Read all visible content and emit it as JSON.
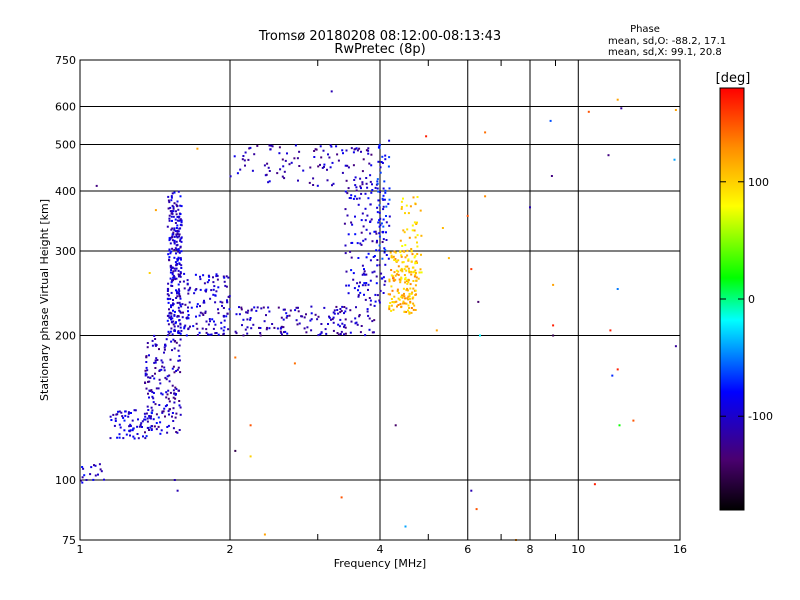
{
  "chart_data": {
    "type": "scatter",
    "title": "Tromsø 20180208 08:12:00-08:13:43",
    "subtitle": "RwPretec (8p)",
    "xlabel": "Frequency [MHz]",
    "ylabel": "Stationary phase Virtual Height [km]",
    "x_scale": "log",
    "y_scale": "log",
    "xlim": [
      1,
      16
    ],
    "ylim": [
      75,
      750
    ],
    "x_ticks": [
      1,
      2,
      4,
      6,
      8,
      10,
      16
    ],
    "x_tick_labels": [
      "1",
      "2",
      "4",
      "6",
      "8",
      "10",
      "16"
    ],
    "x_minor_grid": [
      3,
      5,
      7,
      9
    ],
    "y_ticks": [
      75,
      100,
      200,
      300,
      400,
      500,
      600,
      750
    ],
    "y_tick_labels": [
      "75",
      "100",
      "200",
      "300",
      "400",
      "500",
      "600",
      "750"
    ],
    "grid": true,
    "phase_info": {
      "heading": "Phase",
      "o_mode": "mean, sd,O: -88.2, 17.1",
      "x_mode": "mean, sd,X:  99.1, 20.8"
    },
    "colorbar": {
      "label": "[deg]",
      "range": [
        -180,
        180
      ],
      "ticks": [
        100,
        0,
        -100
      ],
      "tick_labels": [
        "100",
        "0",
        "-100"
      ]
    },
    "point_clusters": [
      {
        "x": [
          1.5,
          1.6
        ],
        "y": [
          200,
          400
        ],
        "phase": -100,
        "count": 260
      },
      {
        "x": [
          1.35,
          1.6
        ],
        "y": [
          125,
          200
        ],
        "phase": -110,
        "count": 160
      },
      {
        "x": [
          1.15,
          1.45
        ],
        "y": [
          122,
          140
        ],
        "phase": -95,
        "count": 80
      },
      {
        "x": [
          1.6,
          2.0
        ],
        "y": [
          200,
          270
        ],
        "phase": -100,
        "count": 130
      },
      {
        "x": [
          1.0,
          1.12
        ],
        "y": [
          98,
          108
        ],
        "phase": -100,
        "count": 18
      },
      {
        "x": [
          2.05,
          3.9
        ],
        "y": [
          200,
          230
        ],
        "phase": -110,
        "count": 150
      },
      {
        "x": [
          2.0,
          3.9
        ],
        "y": [
          410,
          500
        ],
        "phase": -110,
        "count": 110
      },
      {
        "x": [
          3.4,
          4.1
        ],
        "y": [
          230,
          420
        ],
        "phase": -100,
        "count": 140
      },
      {
        "x": [
          3.95,
          4.2
        ],
        "y": [
          280,
          510
        ],
        "phase": -80,
        "count": 60
      },
      {
        "x": [
          4.15,
          4.75
        ],
        "y": [
          222,
          300
        ],
        "phase": 110,
        "count": 150
      },
      {
        "x": [
          4.4,
          4.85
        ],
        "y": [
          260,
          390
        ],
        "phase": 100,
        "count": 60
      }
    ],
    "sparse_points": [
      {
        "x": 1.08,
        "y": 410,
        "phase": -130
      },
      {
        "x": 1.72,
        "y": 490,
        "phase": 120
      },
      {
        "x": 3.2,
        "y": 645,
        "phase": -110
      },
      {
        "x": 4.95,
        "y": 520,
        "phase": 170
      },
      {
        "x": 6.5,
        "y": 530,
        "phase": 140
      },
      {
        "x": 6.3,
        "y": 235,
        "phase": -140
      },
      {
        "x": 6.1,
        "y": 275,
        "phase": 160
      },
      {
        "x": 6.35,
        "y": 200,
        "phase": -20
      },
      {
        "x": 6.1,
        "y": 95,
        "phase": -110
      },
      {
        "x": 6.25,
        "y": 87,
        "phase": 150
      },
      {
        "x": 6.5,
        "y": 390,
        "phase": 130
      },
      {
        "x": 8.0,
        "y": 370,
        "phase": -110
      },
      {
        "x": 8.8,
        "y": 560,
        "phase": -60
      },
      {
        "x": 8.85,
        "y": 430,
        "phase": -130
      },
      {
        "x": 8.9,
        "y": 255,
        "phase": 120
      },
      {
        "x": 8.9,
        "y": 210,
        "phase": 170
      },
      {
        "x": 8.9,
        "y": 200,
        "phase": -150
      },
      {
        "x": 10.5,
        "y": 585,
        "phase": 150
      },
      {
        "x": 11.5,
        "y": 475,
        "phase": -130
      },
      {
        "x": 12.0,
        "y": 620,
        "phase": 120
      },
      {
        "x": 12.2,
        "y": 595,
        "phase": -120
      },
      {
        "x": 11.6,
        "y": 205,
        "phase": 170
      },
      {
        "x": 12.0,
        "y": 250,
        "phase": -50
      },
      {
        "x": 11.7,
        "y": 165,
        "phase": -70
      },
      {
        "x": 12.0,
        "y": 170,
        "phase": 170
      },
      {
        "x": 12.1,
        "y": 130,
        "phase": 20
      },
      {
        "x": 12.9,
        "y": 133,
        "phase": 150
      },
      {
        "x": 15.6,
        "y": 465,
        "phase": -40
      },
      {
        "x": 15.7,
        "y": 590,
        "phase": 120
      },
      {
        "x": 15.7,
        "y": 190,
        "phase": -120
      },
      {
        "x": 10.8,
        "y": 98,
        "phase": 170
      },
      {
        "x": 4.5,
        "y": 80,
        "phase": -40
      },
      {
        "x": 2.35,
        "y": 77,
        "phase": 120
      },
      {
        "x": 2.2,
        "y": 112,
        "phase": 100
      },
      {
        "x": 2.2,
        "y": 130,
        "phase": 150
      },
      {
        "x": 2.05,
        "y": 115,
        "phase": -150
      },
      {
        "x": 2.7,
        "y": 175,
        "phase": 140
      },
      {
        "x": 3.35,
        "y": 92,
        "phase": 150
      },
      {
        "x": 4.3,
        "y": 130,
        "phase": -140
      },
      {
        "x": 5.2,
        "y": 205,
        "phase": 120
      },
      {
        "x": 5.5,
        "y": 290,
        "phase": 110
      },
      {
        "x": 5.35,
        "y": 335,
        "phase": 110
      },
      {
        "x": 6.0,
        "y": 355,
        "phase": 150
      },
      {
        "x": 1.42,
        "y": 365,
        "phase": 120
      },
      {
        "x": 1.38,
        "y": 270,
        "phase": 100
      },
      {
        "x": 1.55,
        "y": 100,
        "phase": -110
      },
      {
        "x": 1.57,
        "y": 95,
        "phase": -110
      },
      {
        "x": 2.05,
        "y": 180,
        "phase": 140
      },
      {
        "x": 7.5,
        "y": 75,
        "phase": 130
      }
    ]
  }
}
